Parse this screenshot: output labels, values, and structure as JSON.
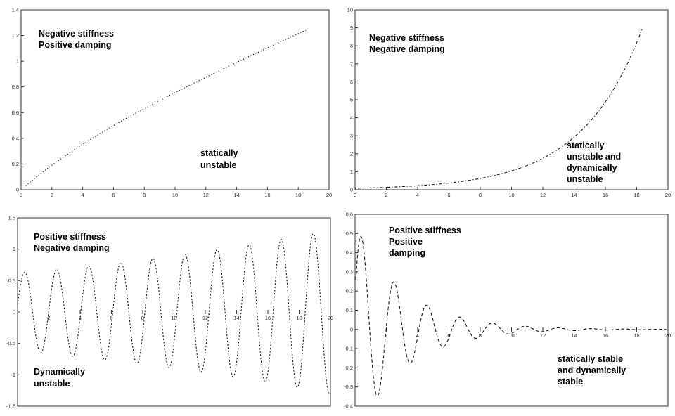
{
  "figure": {
    "background": "#ffffff",
    "curve_color": "#1a1a1a",
    "axis_color": "#333333",
    "tick_label_color": "#333333",
    "annotation_color": "#000000",
    "layout": "2x2 grid of stability response plots, dotted curves, no grid, no legend"
  },
  "chart_data": [
    {
      "id": "negative-stiffness-positive-damping",
      "position": "top-left",
      "type": "line",
      "condition_label": {
        "lines": [
          "Negative stiffness",
          "Positive damping"
        ]
      },
      "stability_label": {
        "lines": [
          "statically",
          "unstable"
        ]
      },
      "xlim": [
        0,
        20
      ],
      "ylim": [
        0,
        1.4
      ],
      "xticks": {
        "values": [
          0,
          2,
          4,
          6,
          8,
          10,
          12,
          14,
          16,
          18,
          20
        ],
        "labels": [
          "0",
          "2",
          "4",
          "6",
          "8",
          "10",
          "12",
          "14",
          "16",
          "18",
          "20"
        ]
      },
      "yticks": {
        "values": [
          0,
          0.2,
          0.4,
          0.6,
          0.8,
          1,
          1.2,
          1.4
        ],
        "labels": [
          "0",
          "0.2",
          "0.4",
          "0.6",
          "0.8",
          "1",
          "1.2",
          "1.4"
        ]
      },
      "x_axis": "bottom",
      "grid": false,
      "legend": null,
      "curve": {
        "kind": "lin_exp",
        "a": 0.054,
        "b": 0.25,
        "c": 5,
        "x0": 0.3,
        "x1": 18.6,
        "dash": "1.3 2.6",
        "description": "monotonic divergence (static instability), nearly straight dotted line",
        "approx_points": {
          "x": [
            0,
            2,
            4,
            6,
            8,
            10,
            12,
            14,
            16,
            18,
            18.6
          ],
          "y": [
            0,
            0.19,
            0.35,
            0.5,
            0.63,
            0.76,
            0.88,
            0.99,
            1.1,
            1.22,
            1.25
          ]
        }
      }
    },
    {
      "id": "negative-stiffness-negative-damping",
      "position": "top-right",
      "type": "line",
      "condition_label": {
        "lines": [
          "Negative stiffness",
          "Negative damping"
        ]
      },
      "stability_label": {
        "lines": [
          "statically",
          "unstable and",
          "dynamically",
          "unstable"
        ]
      },
      "xlim": [
        0,
        20
      ],
      "ylim": [
        0,
        10
      ],
      "xticks": {
        "values": [
          0,
          2,
          4,
          6,
          8,
          10,
          12,
          14,
          16,
          18,
          20
        ],
        "labels": [
          "0",
          "2",
          "4",
          "6",
          "8",
          "10",
          "12",
          "14",
          "16",
          "18",
          "20"
        ]
      },
      "yticks": {
        "values": [
          0,
          1,
          2,
          3,
          4,
          5,
          6,
          7,
          8,
          9,
          10
        ],
        "labels": [
          "0",
          "1",
          "2",
          "3",
          "4",
          "5",
          "6",
          "7",
          "8",
          "9",
          "10"
        ]
      },
      "x_axis": "bottom",
      "grid": false,
      "legend": null,
      "curve": {
        "kind": "exp",
        "a": 0.08,
        "b": 0.257,
        "x0": 0,
        "x1": 18.35,
        "dash": "1.3 2.6 4 2.6",
        "description": "exponential divergence (static + dynamic instability), dotted/dashed",
        "approx_points": {
          "x": [
            0,
            2,
            4,
            6,
            8,
            10,
            12,
            14,
            16,
            18,
            18.35
          ],
          "y": [
            0.08,
            0.13,
            0.22,
            0.37,
            0.62,
            1.05,
            1.75,
            2.92,
            4.88,
            8.16,
            8.9
          ]
        }
      }
    },
    {
      "id": "positive-stiffness-negative-damping",
      "position": "bottom-left",
      "type": "line",
      "condition_label": {
        "lines": [
          "Positive stiffness",
          "Negative damping"
        ]
      },
      "stability_label": {
        "lines": [
          "Dynamically",
          "unstable"
        ]
      },
      "xlim": [
        0,
        20
      ],
      "ylim": [
        -1.5,
        1.5
      ],
      "xticks": {
        "values": [
          0,
          2,
          4,
          6,
          8,
          10,
          12,
          14,
          16,
          18,
          20
        ],
        "labels": [
          "0",
          "2",
          "4",
          "6",
          "8",
          "10",
          "12",
          "14",
          "16",
          "18",
          "20"
        ]
      },
      "yticks": {
        "values": [
          1.5,
          1,
          0.5,
          0,
          -0.5,
          -1,
          -1.5
        ],
        "labels": [
          "1.5",
          "1",
          "0.5",
          "0",
          "-0.5",
          "-1",
          "-1.5"
        ]
      },
      "x_axis": "zero",
      "grid": false,
      "legend": null,
      "curve": {
        "kind": "sine_exp",
        "amp": 0.62,
        "growth": 0.037,
        "period": 2.05,
        "phase": 0.19,
        "x0": 0,
        "x1": 19.9,
        "dash": "2.2 2.4",
        "description": "oscillation with growing amplitude (flutter / dynamic instability)",
        "envelope": {
          "x": [
            0,
            5,
            10,
            15,
            20
          ],
          "amp": [
            0.62,
            0.75,
            0.9,
            1.08,
            1.3
          ]
        }
      }
    },
    {
      "id": "positive-stiffness-positive-damping",
      "position": "bottom-right",
      "type": "line",
      "condition_label": {
        "lines": [
          "Positive stiffness",
          "Positive",
          "damping"
        ]
      },
      "stability_label": {
        "lines": [
          "statically stable",
          "and dynamically",
          "stable"
        ]
      },
      "xlim": [
        0,
        20
      ],
      "ylim": [
        -0.4,
        0.6
      ],
      "xticks": {
        "values": [
          0,
          2,
          4,
          6,
          8,
          10,
          12,
          14,
          16,
          18,
          20
        ],
        "labels": [
          "0",
          "2",
          "4",
          "6",
          "8",
          "10",
          "12",
          "14",
          "16",
          "18",
          "20"
        ]
      },
      "yticks": {
        "values": [
          0.6,
          0.5,
          0.4,
          0.3,
          0.2,
          0.1,
          0,
          -0.1,
          -0.2,
          -0.3,
          -0.4
        ],
        "labels": [
          "0.6",
          "0.5",
          "0.4",
          "0.3",
          "0.2",
          "0.1",
          "0",
          "-0.1",
          "-0.2",
          "-0.3",
          "-0.4"
        ]
      },
      "x_axis": "zero",
      "grid": false,
      "legend": null,
      "curve": {
        "kind": "sine_exp",
        "amp": 0.55,
        "growth": -0.32,
        "period": 2.1,
        "phase": 0.35,
        "x0": 0.05,
        "x1": 19.9,
        "dash": "4.5 3.2",
        "description": "damped oscillation decaying to zero (fully stable response)",
        "envelope": {
          "x": [
            0,
            2,
            4,
            6,
            8,
            10,
            20
          ],
          "amp": [
            0.55,
            0.29,
            0.15,
            0.08,
            0.04,
            0.02,
            0.001
          ]
        }
      }
    }
  ]
}
